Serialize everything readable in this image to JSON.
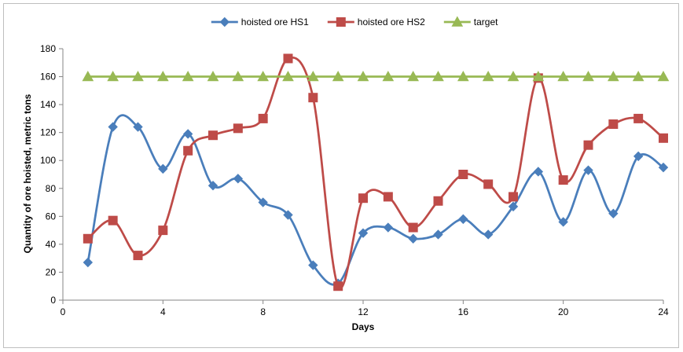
{
  "chart_data": {
    "type": "line",
    "title": "",
    "xlabel": "Days",
    "ylabel": "Quantity of ore hoisted, metric tons",
    "xlim": [
      0,
      24
    ],
    "ylim": [
      0,
      180
    ],
    "xticks": [
      0,
      4,
      8,
      12,
      16,
      20,
      24
    ],
    "yticks": [
      0,
      20,
      40,
      60,
      80,
      100,
      120,
      140,
      160,
      180
    ],
    "grid": false,
    "legend_position": "top",
    "x": [
      1,
      2,
      3,
      4,
      5,
      6,
      7,
      8,
      9,
      10,
      11,
      12,
      13,
      14,
      15,
      16,
      17,
      18,
      19,
      20,
      21,
      22,
      23,
      24
    ],
    "series": [
      {
        "name": "hoisted ore HS1",
        "color": "#4a7ebb",
        "marker": "diamond",
        "values": [
          27,
          124,
          124,
          94,
          119,
          82,
          87,
          70,
          61,
          25,
          12,
          48,
          52,
          44,
          47,
          58,
          47,
          67,
          92,
          56,
          93,
          62,
          103,
          95
        ]
      },
      {
        "name": "hoisted ore HS2",
        "color": "#be4b48",
        "marker": "square",
        "values": [
          44,
          57,
          32,
          50,
          107,
          118,
          123,
          130,
          173,
          145,
          10,
          73,
          74,
          52,
          71,
          90,
          83,
          74,
          159,
          86,
          111,
          126,
          130,
          116
        ]
      },
      {
        "name": "target",
        "color": "#98b954",
        "marker": "triangle",
        "values": [
          160,
          160,
          160,
          160,
          160,
          160,
          160,
          160,
          160,
          160,
          160,
          160,
          160,
          160,
          160,
          160,
          160,
          160,
          160,
          160,
          160,
          160,
          160,
          160
        ]
      }
    ]
  }
}
